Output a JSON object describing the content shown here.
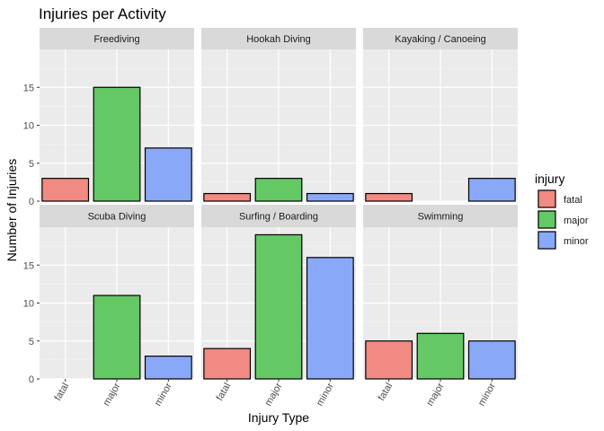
{
  "chart_data": {
    "type": "bar",
    "title": "Injuries per Activity",
    "xlabel": "Injury Type",
    "ylabel": "Number of Injuries",
    "categories": [
      "fatal",
      "major",
      "minor"
    ],
    "ylim": [
      0,
      20
    ],
    "yticks": [
      0,
      5,
      10,
      15
    ],
    "grid": true,
    "legend": {
      "title": "injury",
      "placement": "right",
      "entries": [
        "fatal",
        "major",
        "minor"
      ]
    },
    "colors": {
      "fatal": "#f08a82",
      "major": "#64c864",
      "minor": "#8aa8f8"
    },
    "facets": [
      {
        "name": "Freediving",
        "values": [
          3,
          15,
          7
        ]
      },
      {
        "name": "Hookah Diving",
        "values": [
          1,
          3,
          1
        ]
      },
      {
        "name": "Kayaking / Canoeing",
        "values": [
          1,
          0,
          3
        ]
      },
      {
        "name": "Scuba Diving",
        "values": [
          0,
          11,
          3
        ]
      },
      {
        "name": "Surfing / Boarding",
        "values": [
          4,
          19,
          16
        ]
      },
      {
        "name": "Swimming",
        "values": [
          5,
          6,
          5
        ]
      }
    ]
  }
}
